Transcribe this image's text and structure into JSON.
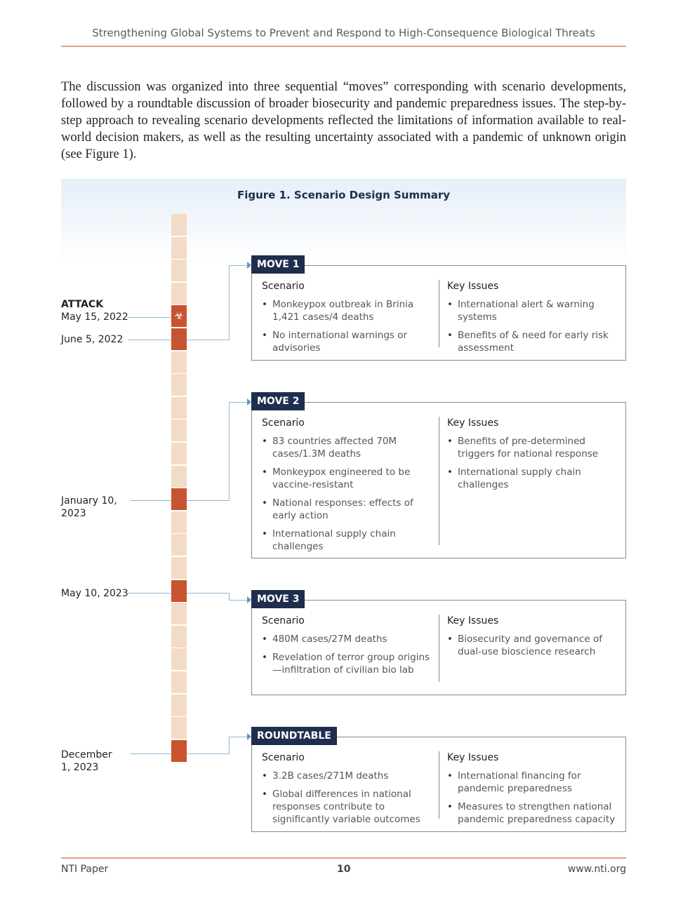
{
  "header": {
    "title": "Strengthening Global Systems to Prevent and Respond to High-Consequence Biological Threats"
  },
  "intro": "The discussion was organized into three sequential “moves” corresponding with scenario developments, followed by a roundtable discussion of broader biosecurity and pandemic preparedness issues. The step-by-step approach to revealing scenario developments reflected the limitations of information available to real-world decision makers, as well as the resulting uncertainty associated with a pandemic of unknown origin (see Figure 1).",
  "figure": {
    "title": "Figure 1. Scenario Design Summary",
    "timeline": {
      "cell_count": 24,
      "highlighted_cells": [
        4,
        5,
        12,
        16,
        23
      ],
      "attack_icon": "biohazard-icon",
      "colors": {
        "light": "#f2dcc8",
        "dark": "#c8532f",
        "label": "#1f2d4e"
      }
    },
    "dates": [
      {
        "label": "ATTACK",
        "date": "May 15, 2022"
      },
      {
        "date": "June 5, 2022"
      },
      {
        "date": "January 10, 2023"
      },
      {
        "date": "May 10, 2023"
      },
      {
        "date": "December 1, 2023"
      }
    ],
    "moves": [
      {
        "label": "MOVE 1",
        "scenario_title": "Scenario",
        "key_title": "Key Issues",
        "scenario": [
          "Monkeypox outbreak in Brinia 1,421 cases/4 deaths",
          "No international warnings or advisories"
        ],
        "key_issues": [
          "International alert & warning systems",
          "Benefits of & need for early risk assessment"
        ]
      },
      {
        "label": "MOVE 2",
        "scenario_title": "Scenario",
        "key_title": "Key Issues",
        "scenario": [
          "83 countries affected 70M cases/1.3M deaths",
          "Monkeypox engineered to be vaccine-resistant",
          "National responses: effects of early action",
          "International supply chain challenges"
        ],
        "key_issues": [
          "Benefits of pre-determined triggers for national response",
          "International supply chain challenges"
        ]
      },
      {
        "label": "MOVE 3",
        "scenario_title": "Scenario",
        "key_title": "Key Issues",
        "scenario": [
          "480M cases/27M deaths",
          "Revelation of terror group origins—infiltration of civilian bio lab"
        ],
        "key_issues": [
          "Biosecurity and governance of dual-use bioscience research"
        ]
      },
      {
        "label": "ROUNDTABLE",
        "scenario_title": "Scenario",
        "key_title": "Key Issues",
        "scenario": [
          "3.2B cases/271M deaths",
          "Global differences in national responses contribute to significantly variable outcomes"
        ],
        "key_issues": [
          "International financing for pandemic preparedness",
          "Measures to strengthen national pandemic preparedness capacity"
        ]
      }
    ]
  },
  "footer": {
    "left": "NTI Paper",
    "page": "10",
    "right": "www.nti.org"
  }
}
